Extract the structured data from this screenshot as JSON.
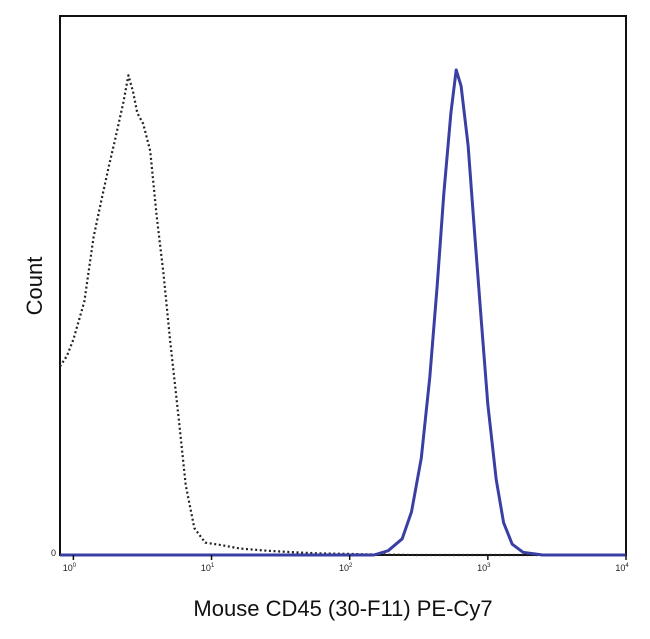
{
  "chart_data": {
    "type": "line",
    "title": "",
    "xlabel": "Mouse CD45 (30-F11) PE-Cy7",
    "ylabel": "Count",
    "x_scale": "log",
    "xlim": [
      0.8,
      10000
    ],
    "ylim": [
      0,
      100
    ],
    "grid": false,
    "legend": "none",
    "x_tick_labels": [
      {
        "value": 1,
        "base": "10",
        "exp": "0"
      },
      {
        "value": 10,
        "base": "10",
        "exp": "1"
      },
      {
        "value": 100,
        "base": "10",
        "exp": "2"
      },
      {
        "value": 1000,
        "base": "10",
        "exp": "3"
      },
      {
        "value": 10000,
        "base": "10",
        "exp": "4"
      }
    ],
    "y_tick_labels": [
      {
        "value": 0,
        "label": "0"
      }
    ],
    "series": [
      {
        "style": "dotted",
        "color": "#222222",
        "points": [
          [
            0.8,
            35
          ],
          [
            0.9,
            37
          ],
          [
            1.0,
            40
          ],
          [
            1.2,
            47
          ],
          [
            1.4,
            59
          ],
          [
            1.6,
            66
          ],
          [
            1.8,
            72
          ],
          [
            2.0,
            77
          ],
          [
            2.3,
            84
          ],
          [
            2.5,
            89
          ],
          [
            2.7,
            86
          ],
          [
            2.9,
            82
          ],
          [
            3.2,
            80
          ],
          [
            3.6,
            75
          ],
          [
            4.0,
            63
          ],
          [
            4.5,
            52
          ],
          [
            5.0,
            40
          ],
          [
            5.8,
            25
          ],
          [
            6.5,
            13
          ],
          [
            7.5,
            5
          ],
          [
            9,
            2.3
          ],
          [
            12,
            1.8
          ],
          [
            16,
            1.2
          ],
          [
            25,
            0.8
          ],
          [
            40,
            0.5
          ],
          [
            60,
            0.3
          ],
          [
            100,
            0.2
          ],
          [
            150,
            0.1
          ],
          [
            300,
            0
          ],
          [
            10000,
            0
          ]
        ]
      },
      {
        "style": "solid",
        "color": "#3a3fa3",
        "points": [
          [
            0.8,
            0
          ],
          [
            100,
            0
          ],
          [
            150,
            0
          ],
          [
            190,
            0.8
          ],
          [
            240,
            3
          ],
          [
            280,
            8
          ],
          [
            330,
            18
          ],
          [
            380,
            33
          ],
          [
            430,
            50
          ],
          [
            480,
            67
          ],
          [
            540,
            82
          ],
          [
            590,
            90
          ],
          [
            640,
            87
          ],
          [
            720,
            76
          ],
          [
            800,
            60
          ],
          [
            900,
            43
          ],
          [
            1000,
            28
          ],
          [
            1150,
            14
          ],
          [
            1300,
            6
          ],
          [
            1500,
            2
          ],
          [
            1800,
            0.5
          ],
          [
            2500,
            0
          ],
          [
            10000,
            0
          ]
        ]
      }
    ]
  }
}
